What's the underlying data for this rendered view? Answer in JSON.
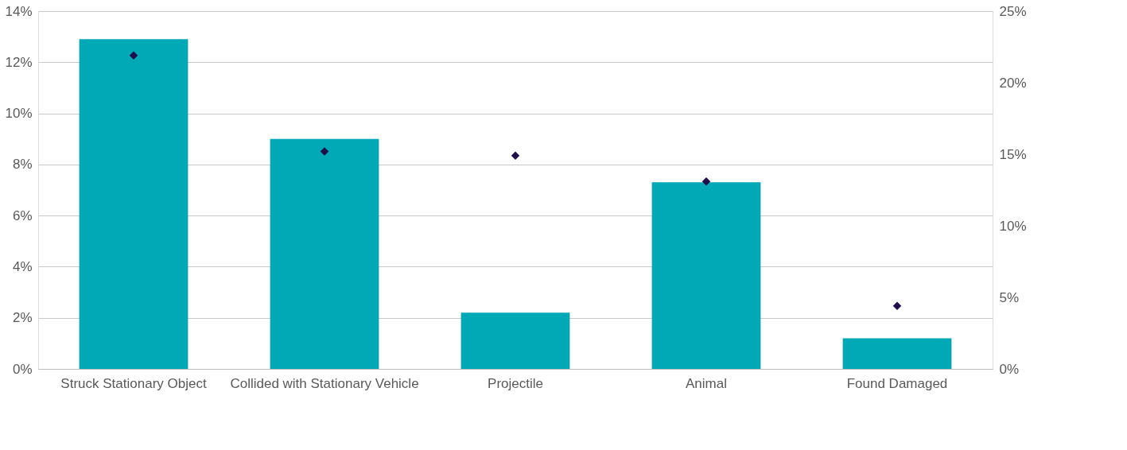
{
  "chart_data": {
    "type": "bar",
    "categories": [
      "Struck Stationary Object",
      "Collided with Stationary Vehicle",
      "Projectile",
      "Animal",
      "Found Damaged"
    ],
    "series": [
      {
        "type": "bar",
        "color": "#00a9b5",
        "values": [
          12.9,
          9.0,
          2.2,
          7.3,
          1.2
        ]
      },
      {
        "type": "scatter",
        "axis": "y2",
        "marker": "diamond",
        "color": "#1f0e4b",
        "values": [
          21.9,
          15.2,
          14.9,
          13.1,
          4.4
        ]
      }
    ],
    "ylim": [
      0,
      14
    ],
    "yticks": [
      {
        "value": 0,
        "label": "0%"
      },
      {
        "value": 2,
        "label": "2%"
      },
      {
        "value": 4,
        "label": "4%"
      },
      {
        "value": 6,
        "label": "6%"
      },
      {
        "value": 8,
        "label": "8%"
      },
      {
        "value": 10,
        "label": "10%"
      },
      {
        "value": 12,
        "label": "12%"
      },
      {
        "value": 14,
        "label": "14%"
      }
    ],
    "y2lim": [
      0,
      25
    ],
    "y2ticks": [
      {
        "value": 0,
        "label": "0%"
      },
      {
        "value": 5,
        "label": "5%"
      },
      {
        "value": 10,
        "label": "10%"
      },
      {
        "value": 15,
        "label": "15%"
      },
      {
        "value": 20,
        "label": "20%"
      },
      {
        "value": 25,
        "label": "25%"
      }
    ],
    "grid": "y",
    "legend": false
  }
}
